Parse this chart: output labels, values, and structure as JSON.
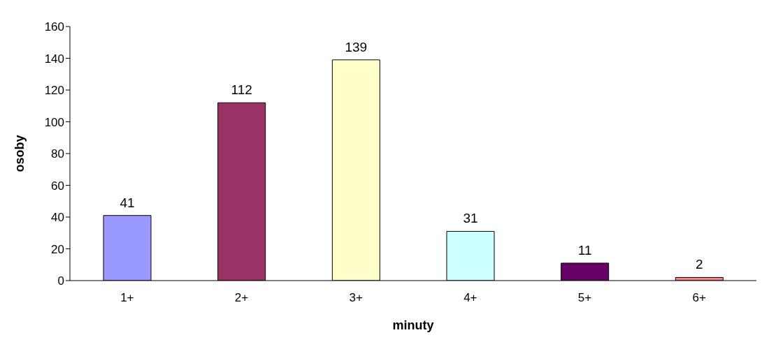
{
  "chart_data": {
    "type": "bar",
    "xlabel": "minuty",
    "ylabel": "osoby",
    "categories": [
      "1+",
      "2+",
      "3+",
      "4+",
      "5+",
      "6+"
    ],
    "values": [
      41,
      112,
      139,
      31,
      11,
      2
    ],
    "colors": [
      "#9999ff",
      "#993366",
      "#ffffcc",
      "#ccffff",
      "#660066",
      "#ff8080"
    ],
    "ylim": [
      0,
      160
    ],
    "yticks": [
      0,
      20,
      40,
      60,
      80,
      100,
      120,
      140,
      160
    ],
    "grid": false,
    "data_labels": true
  }
}
